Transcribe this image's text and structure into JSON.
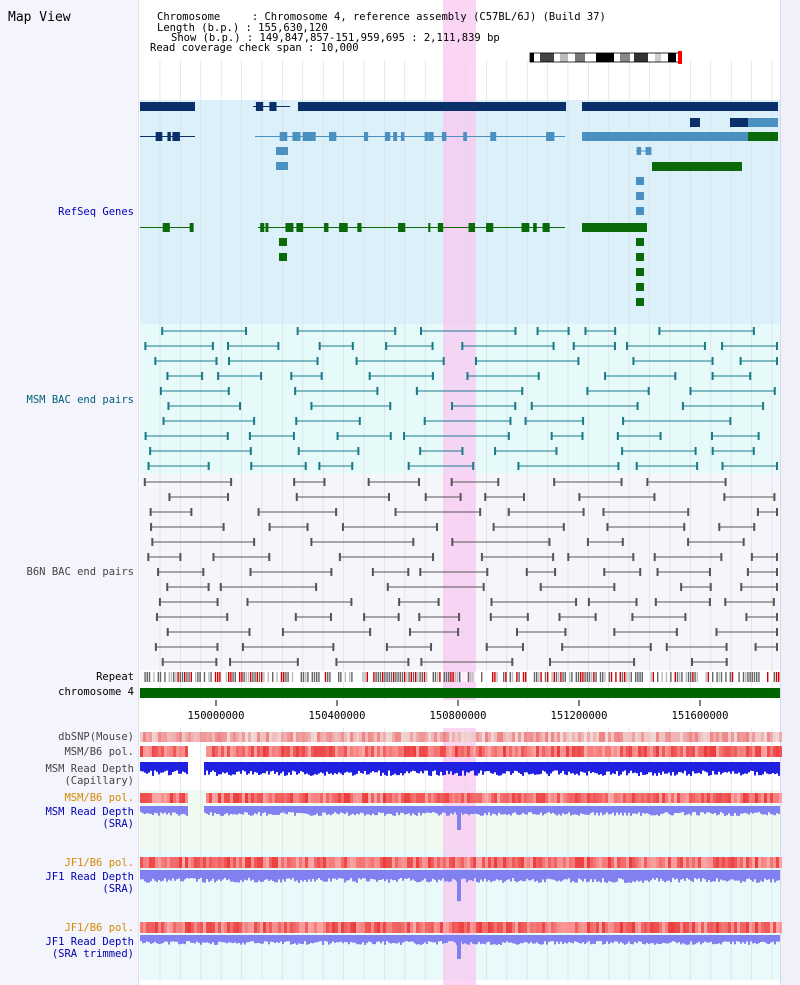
{
  "panel": {
    "title": "Map View"
  },
  "header": {
    "chromosome_label": "Chromosome     : Chromosome 4, reference assembly (C57BL/6J) (Build 37)",
    "length_label": "Length (b.p.) : 155,630,120",
    "show_label": "Show (b.p.) : 149,847,857-151,959,695 : 2,111,839 bp",
    "coverage_label": "Read coverage check span : 10,000"
  },
  "tracks": {
    "refseq": "RefSeq Genes",
    "msm_bac": "MSM BAC end pairs",
    "b6n_bac": "B6N BAC end pairs",
    "repeat": "Repeat",
    "chromosome": "chromosome 4",
    "dbsnp": "dbSNP(Mouse)",
    "msm_b6_pol_1": "MSM/B6 pol.",
    "msm_depth_cap_1": "MSM Read Depth",
    "msm_depth_cap_2": "(Capillary)",
    "msm_b6_pol_2": "MSM/B6 pol.",
    "msm_depth_sra_1": "MSM Read Depth",
    "msm_depth_sra_2": "(SRA)",
    "jf1_pol_1": "JF1/B6 pol.",
    "jf1_depth_sra_1": "JF1 Read Depth",
    "jf1_depth_sra_2": "(SRA)",
    "jf1_pol_2": "JF1/B6 pol.",
    "jf1_depth_trim_1": "JF1 Read Depth",
    "jf1_depth_trim_2": "(SRA trimmed)"
  },
  "axis": {
    "ticks": [
      "150000000",
      "150400000",
      "150800000",
      "151200000",
      "151600000"
    ]
  },
  "colors": {
    "refseq_blue": "#0a2f6a",
    "refseq_light": "#4a90c0",
    "refseq_green": "#0a6a0a",
    "msm_bac": "#1a7a8a",
    "b6n_bac": "#555555",
    "highlight": "#f8c8f0",
    "chrom_green": "#006400",
    "pol_red": "#f05050",
    "depth_blue": "#2020e0",
    "depth_light": "#8080f0"
  }
}
